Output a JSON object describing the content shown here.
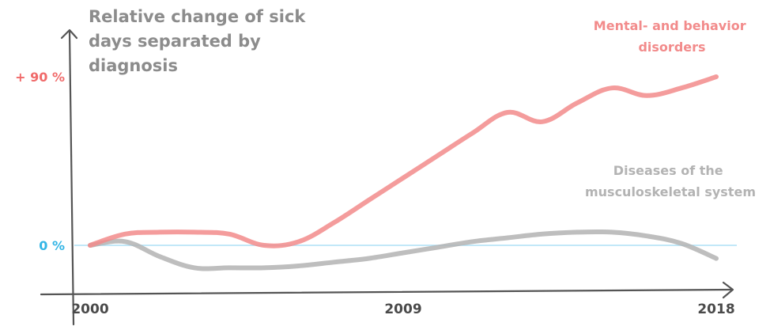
{
  "chart_data": {
    "type": "line",
    "title": "Relative change of sick days separated by diagnosis",
    "title_lines": [
      "Relative change of sick",
      "days separated by",
      "diagnosis"
    ],
    "x_ticks": [
      "2000",
      "2009",
      "2018"
    ],
    "y_ticks": [
      {
        "label": "0 %",
        "value": 0,
        "color": "#33b5e5"
      },
      {
        "label": "+ 90 %",
        "value": 90,
        "color": "#f06a6a"
      }
    ],
    "xlim": [
      2000,
      2018
    ],
    "ylim": [
      -15,
      100
    ],
    "grid": false,
    "series": [
      {
        "name": "Mental- and behavior disorders",
        "label_lines": [
          "Mental- and behavior",
          "disorders"
        ],
        "color": "#f28b8b",
        "x": [
          2000,
          2001,
          2002,
          2003,
          2004,
          2005,
          2006,
          2007,
          2008,
          2009,
          2010,
          2011,
          2012,
          2013,
          2014,
          2015,
          2016,
          2017,
          2018
        ],
        "values": [
          0,
          6,
          7,
          7,
          6,
          0,
          2,
          12,
          24,
          36,
          48,
          60,
          71,
          66,
          76,
          84,
          80,
          84,
          90
        ]
      },
      {
        "name": "Diseases of the musculoskeletal system",
        "label_lines": [
          "Diseases of the",
          "musculoskeletal system"
        ],
        "color": "#b3b3b3",
        "x": [
          2000,
          2001,
          2002,
          2003,
          2004,
          2005,
          2006,
          2007,
          2008,
          2009,
          2010,
          2011,
          2012,
          2013,
          2014,
          2015,
          2016,
          2017,
          2018
        ],
        "values": [
          0,
          2,
          -6,
          -12,
          -12,
          -12,
          -11,
          -9,
          -7,
          -4,
          -1,
          2,
          4,
          6,
          7,
          7,
          5,
          1,
          -7
        ]
      }
    ]
  }
}
